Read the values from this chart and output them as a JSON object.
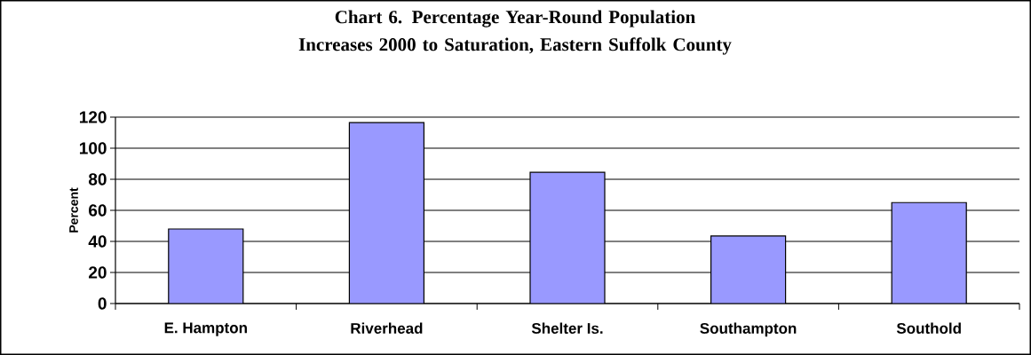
{
  "chart_data": {
    "type": "bar",
    "title": "Chart 6. Percentage Year-Round Population Increases 2000 to Saturation, Eastern Suffolk County",
    "ylabel": "Percent",
    "categories": [
      "E. Hampton",
      "Riverhead",
      "Shelter Is.",
      "Southampton",
      "Southold"
    ],
    "values": [
      48,
      116.5,
      84.5,
      43.5,
      65
    ],
    "color": "#9999ff",
    "ylim": [
      0,
      120
    ],
    "yticks": [
      0,
      20,
      40,
      60,
      80,
      100,
      120
    ],
    "grid": "y"
  }
}
